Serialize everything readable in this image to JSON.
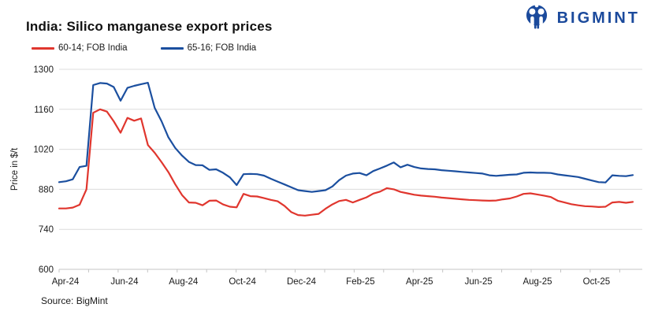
{
  "header": {
    "title": "India: Silico manganese export prices",
    "brand": "BIGMINT",
    "brand_color": "#1b4a9c"
  },
  "legend": [
    {
      "label": "60-14; FOB India",
      "color": "#e0362e"
    },
    {
      "label": "65-16; FOB India",
      "color": "#1b4f9f"
    }
  ],
  "source": "Source: BigMint",
  "chart_data": {
    "type": "line",
    "title": "India: Silico manganese export prices",
    "xlabel": "",
    "ylabel": "Price in $/t",
    "ylim": [
      600,
      1300
    ],
    "yticks": [
      600,
      740,
      880,
      1020,
      1160,
      1300
    ],
    "xtick_labels": [
      "Apr-24",
      "Jun-24",
      "Aug-24",
      "Oct-24",
      "Dec-24",
      "Feb-25",
      "Apr-25",
      "Jun-25",
      "Aug-25",
      "Oct-25"
    ],
    "x_unit": "weekly observations, Apr-2024 through mid-Nov-2025",
    "grid": "horizontal",
    "legend_position": "top-left",
    "grid_color": "#dcdcdc",
    "axis_color": "#c4c4c4",
    "series": [
      {
        "name": "60-14; FOB India",
        "color": "#e0362e",
        "values": [
          813,
          813,
          816,
          826,
          880,
          1148,
          1160,
          1152,
          1118,
          1078,
          1130,
          1120,
          1128,
          1035,
          1008,
          975,
          940,
          898,
          860,
          834,
          833,
          824,
          840,
          841,
          827,
          819,
          817,
          864,
          856,
          855,
          849,
          843,
          838,
          822,
          800,
          790,
          788,
          791,
          794,
          812,
          827,
          839,
          843,
          834,
          843,
          852,
          865,
          872,
          884,
          880,
          871,
          866,
          861,
          858,
          856,
          854,
          851,
          849,
          847,
          845,
          843,
          842,
          841,
          840,
          841,
          845,
          848,
          855,
          864,
          866,
          862,
          858,
          853,
          840,
          834,
          828,
          824,
          821,
          820,
          818,
          819,
          834,
          836,
          833,
          836
        ]
      },
      {
        "name": "65-16; FOB India",
        "color": "#1b4f9f",
        "values": [
          905,
          908,
          915,
          958,
          962,
          1245,
          1252,
          1250,
          1238,
          1190,
          1235,
          1242,
          1248,
          1253,
          1165,
          1118,
          1062,
          1025,
          998,
          976,
          965,
          964,
          948,
          950,
          938,
          922,
          895,
          933,
          934,
          933,
          928,
          917,
          907,
          897,
          887,
          877,
          874,
          871,
          874,
          877,
          890,
          912,
          928,
          935,
          937,
          929,
          944,
          953,
          963,
          974,
          957,
          966,
          958,
          953,
          951,
          950,
          947,
          945,
          943,
          941,
          939,
          937,
          935,
          929,
          927,
          929,
          931,
          932,
          938,
          939,
          938,
          938,
          937,
          932,
          929,
          926,
          923,
          917,
          911,
          905,
          904,
          929,
          927,
          926,
          930
        ]
      }
    ]
  }
}
